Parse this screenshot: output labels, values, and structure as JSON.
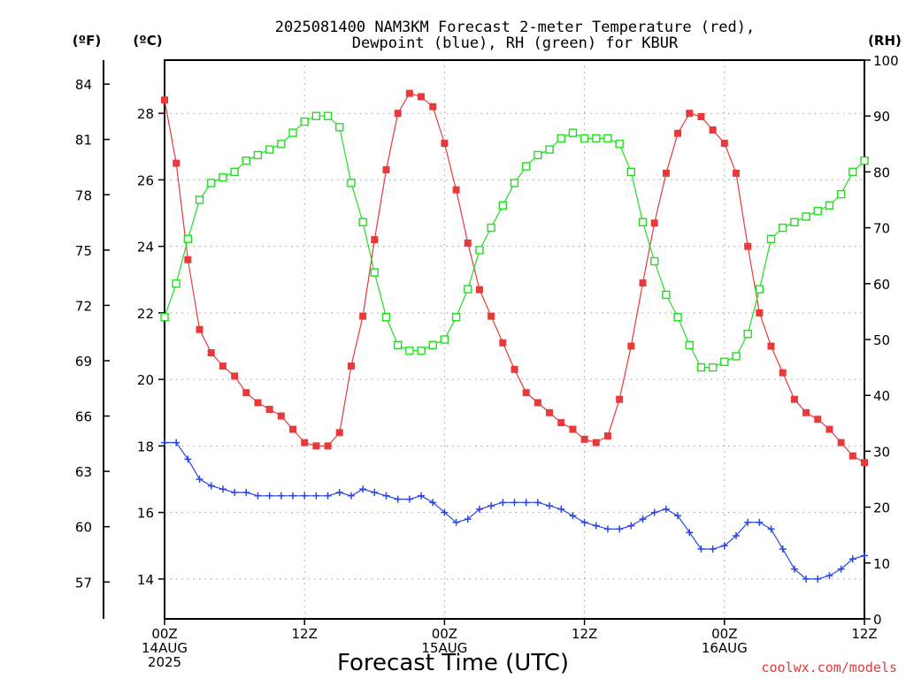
{
  "chart_data": {
    "type": "line",
    "title_line1": "2025081400 NAM3KM Forecast 2-meter Temperature (red),",
    "title_line2": "Dewpoint (blue), RH (green) for KBUR",
    "xlabel": "Forecast Time (UTC)",
    "credit": "coolwx.com/models",
    "units": {
      "f": "(ºF)",
      "c": "(ºC)",
      "rh": "(RH)"
    },
    "x_ticks": [
      {
        "hour": 0,
        "lines": [
          "00Z",
          "14AUG",
          "2025"
        ]
      },
      {
        "hour": 12,
        "lines": [
          "12Z"
        ]
      },
      {
        "hour": 24,
        "lines": [
          "00Z",
          "15AUG"
        ]
      },
      {
        "hour": 36,
        "lines": [
          "12Z"
        ]
      },
      {
        "hour": 48,
        "lines": [
          "00Z",
          "16AUG"
        ]
      },
      {
        "hour": 60,
        "lines": [
          "12Z"
        ]
      }
    ],
    "xlim": [
      0,
      60
    ],
    "ylim_c": [
      12.8,
      29.6
    ],
    "ylim_rh": [
      0,
      100
    ],
    "ylim_f": [
      55.0,
      85.3
    ],
    "c_ticks": [
      14,
      16,
      18,
      20,
      22,
      24,
      26,
      28
    ],
    "rh_ticks": [
      0,
      10,
      20,
      30,
      40,
      50,
      60,
      70,
      80,
      90,
      100
    ],
    "f_ticks": [
      57,
      60,
      63,
      66,
      69,
      72,
      75,
      78,
      81,
      84
    ],
    "grid": true,
    "series": [
      {
        "name": "Temperature",
        "axis": "c",
        "color": "#e8393b",
        "marker": "filled-square",
        "x": [
          0,
          1,
          2,
          3,
          4,
          5,
          6,
          7,
          8,
          9,
          10,
          11,
          12,
          13,
          14,
          15,
          16,
          17,
          18,
          19,
          20,
          21,
          22,
          23,
          24,
          25,
          26,
          27,
          28,
          29,
          30,
          31,
          32,
          33,
          34,
          35,
          36,
          37,
          38,
          39,
          40,
          41,
          42,
          43,
          44,
          45,
          46,
          47,
          48,
          49,
          50,
          51,
          52,
          53,
          54,
          55,
          56,
          57,
          58,
          59,
          60
        ],
        "values": [
          28.4,
          26.5,
          23.6,
          21.5,
          20.8,
          20.4,
          20.1,
          19.6,
          19.3,
          19.1,
          18.9,
          18.5,
          18.1,
          18.0,
          18.0,
          18.4,
          20.4,
          21.9,
          24.2,
          26.3,
          28.0,
          28.6,
          28.5,
          28.2,
          27.1,
          25.7,
          24.1,
          22.7,
          21.9,
          21.1,
          20.3,
          19.6,
          19.3,
          19.0,
          18.7,
          18.5,
          18.2,
          18.1,
          18.3,
          19.4,
          21.0,
          22.9,
          24.7,
          26.2,
          27.4,
          28.0,
          27.9,
          27.5,
          27.1,
          26.2,
          24.0,
          22.0,
          21.0,
          20.2,
          19.4,
          19.0,
          18.8,
          18.5,
          18.1,
          17.7,
          17.5
        ]
      },
      {
        "name": "Dewpoint",
        "axis": "c",
        "color": "#2a46e6",
        "marker": "plus",
        "x": [
          0,
          1,
          2,
          3,
          4,
          5,
          6,
          7,
          8,
          9,
          10,
          11,
          12,
          13,
          14,
          15,
          16,
          17,
          18,
          19,
          20,
          21,
          22,
          23,
          24,
          25,
          26,
          27,
          28,
          29,
          30,
          31,
          32,
          33,
          34,
          35,
          36,
          37,
          38,
          39,
          40,
          41,
          42,
          43,
          44,
          45,
          46,
          47,
          48,
          49,
          50,
          51,
          52,
          53,
          54,
          55,
          56,
          57,
          58,
          59,
          60
        ],
        "values": [
          18.1,
          18.1,
          17.6,
          17.0,
          16.8,
          16.7,
          16.6,
          16.6,
          16.5,
          16.5,
          16.5,
          16.5,
          16.5,
          16.5,
          16.5,
          16.6,
          16.5,
          16.7,
          16.6,
          16.5,
          16.4,
          16.4,
          16.5,
          16.3,
          16.0,
          15.7,
          15.8,
          16.1,
          16.2,
          16.3,
          16.3,
          16.3,
          16.3,
          16.2,
          16.1,
          15.9,
          15.7,
          15.6,
          15.5,
          15.5,
          15.6,
          15.8,
          16.0,
          16.1,
          15.9,
          15.4,
          14.9,
          14.9,
          15.0,
          15.3,
          15.7,
          15.7,
          15.5,
          14.9,
          14.3,
          14.0,
          14.0,
          14.1,
          14.3,
          14.6,
          14.7
        ]
      },
      {
        "name": "RH",
        "axis": "rh",
        "color": "#22dd22",
        "marker": "open-square",
        "x": [
          0,
          1,
          2,
          3,
          4,
          5,
          6,
          7,
          8,
          9,
          10,
          11,
          12,
          13,
          14,
          15,
          16,
          17,
          18,
          19,
          20,
          21,
          22,
          23,
          24,
          25,
          26,
          27,
          28,
          29,
          30,
          31,
          32,
          33,
          34,
          35,
          36,
          37,
          38,
          39,
          40,
          41,
          42,
          43,
          44,
          45,
          46,
          47,
          48,
          49,
          50,
          51,
          52,
          53,
          54,
          55,
          56,
          57,
          58,
          59,
          60
        ],
        "values": [
          54,
          60,
          68,
          75,
          78,
          79,
          80,
          82,
          83,
          84,
          85,
          87,
          89,
          90,
          90,
          88,
          78,
          71,
          62,
          54,
          49,
          48,
          48,
          49,
          50,
          54,
          59,
          66,
          70,
          74,
          78,
          81,
          83,
          84,
          86,
          87,
          86,
          86,
          86,
          85,
          80,
          71,
          64,
          58,
          54,
          49,
          45,
          45,
          46,
          47,
          51,
          59,
          68,
          70,
          71,
          72,
          73,
          74,
          76,
          80,
          82
        ]
      }
    ]
  }
}
